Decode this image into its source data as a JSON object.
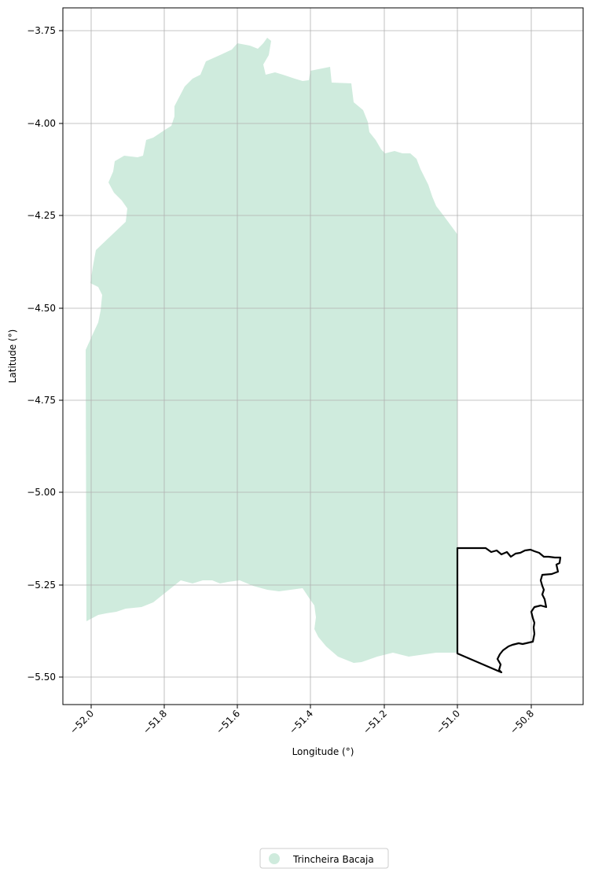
{
  "axes": {
    "xlabel": "Longitude (°)",
    "ylabel": "Latitude (°)",
    "x_ticks": [
      "−52.0",
      "−51.8",
      "−51.6",
      "−51.4",
      "−51.2",
      "−51.0",
      "−50.8"
    ],
    "y_ticks": [
      "−3.75",
      "−4.00",
      "−4.25",
      "−4.50",
      "−4.75",
      "−5.00",
      "−5.25",
      "−5.50"
    ],
    "grid": true
  },
  "legend": {
    "placement": "bottom-center",
    "entries": [
      {
        "label": "Trincheira Bacaja",
        "color": "#cfebdd"
      }
    ]
  },
  "layers": [
    {
      "name": "Trincheira Bacaja",
      "type": "filled-polygon",
      "color": "#cfebdd"
    },
    {
      "name": "outlined-region",
      "type": "outline",
      "color": "#000000"
    }
  ]
}
